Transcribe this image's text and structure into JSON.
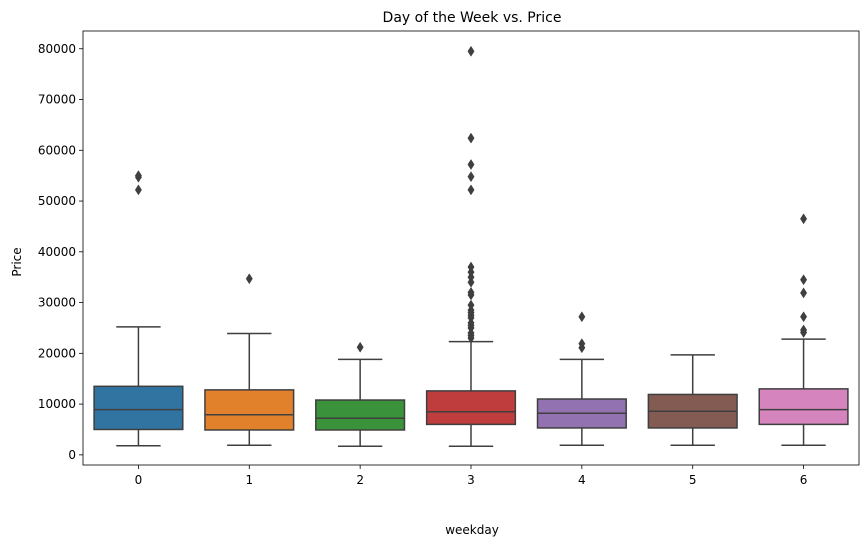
{
  "chart_data": {
    "type": "box",
    "title": "Day of the Week vs. Price",
    "xlabel": "weekday",
    "ylabel": "Price",
    "categories": [
      "0",
      "1",
      "2",
      "3",
      "4",
      "5",
      "6"
    ],
    "ylim": [
      -2000,
      83500
    ],
    "yticks": [
      0,
      10000,
      20000,
      30000,
      40000,
      50000,
      60000,
      70000,
      80000
    ],
    "ytick_labels": [
      "0",
      "10000",
      "20000",
      "30000",
      "40000",
      "50000",
      "60000",
      "70000",
      "80000"
    ],
    "grid": false,
    "series": [
      {
        "category": "0",
        "color": "#3274a1",
        "whisker_low": 1800,
        "q1": 5000,
        "median": 8900,
        "q3": 13500,
        "whisker_high": 25200,
        "outliers": [
          52200,
          54700,
          55000
        ]
      },
      {
        "category": "1",
        "color": "#e1812c",
        "whisker_low": 1900,
        "q1": 4900,
        "median": 7900,
        "q3": 12800,
        "whisker_high": 23900,
        "outliers": [
          34700
        ]
      },
      {
        "category": "2",
        "color": "#3a923a",
        "whisker_low": 1700,
        "q1": 4900,
        "median": 7200,
        "q3": 10800,
        "whisker_high": 18800,
        "outliers": [
          21200
        ]
      },
      {
        "category": "3",
        "color": "#c03d3e",
        "whisker_low": 1700,
        "q1": 6000,
        "median": 8500,
        "q3": 12600,
        "whisker_high": 22300,
        "outliers": [
          23000,
          23500,
          24000,
          25000,
          25500,
          26000,
          27000,
          27500,
          28000,
          28500,
          29500,
          31500,
          32000,
          34000,
          35000,
          36000,
          37000,
          52200,
          54800,
          57200,
          62400,
          79500
        ]
      },
      {
        "category": "4",
        "color": "#9372b2",
        "whisker_low": 1900,
        "q1": 5300,
        "median": 8200,
        "q3": 11000,
        "whisker_high": 18800,
        "outliers": [
          21100,
          21900,
          27200
        ]
      },
      {
        "category": "5",
        "color": "#845b53",
        "whisker_low": 1900,
        "q1": 5300,
        "median": 8600,
        "q3": 11900,
        "whisker_high": 19700,
        "outliers": []
      },
      {
        "category": "6",
        "color": "#d684bd",
        "whisker_low": 1900,
        "q1": 6000,
        "median": 8900,
        "q3": 13000,
        "whisker_high": 22800,
        "outliers": [
          24100,
          24600,
          27200,
          31900,
          34500,
          46500
        ]
      }
    ]
  }
}
